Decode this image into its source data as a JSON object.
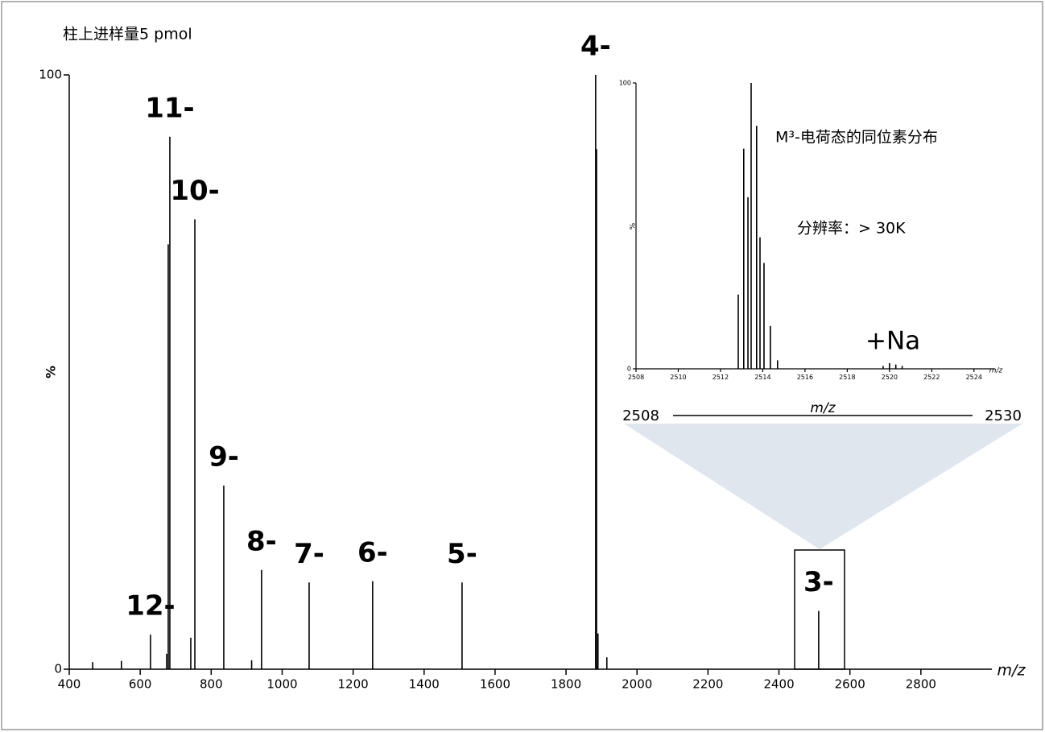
{
  "chart_data": [
    {
      "type": "stem",
      "title": "柱上进样量5 pmol",
      "xlabel": "m/z",
      "ylabel": "%",
      "x": [
        466,
        547,
        629,
        674.5,
        679,
        683.5,
        742.5,
        754,
        835.5,
        914,
        942,
        1076,
        1255,
        1507,
        1883.5,
        1886,
        1890,
        1915,
        2512
      ],
      "values": [
        1.2,
        1.4,
        5.8,
        2.6,
        71.5,
        89.6,
        5.3,
        75.7,
        30.9,
        1.5,
        16.7,
        14.6,
        14.8,
        14.6,
        100,
        87.5,
        6,
        2,
        9.8
      ],
      "labels": [
        null,
        null,
        "12-",
        null,
        null,
        "11-",
        null,
        "10-",
        "9-",
        null,
        "8-",
        "7-",
        "6-",
        "5-",
        "4-",
        null,
        null,
        null,
        "3-"
      ],
      "xlim": [
        400,
        3000
      ],
      "ylim": [
        0,
        100
      ],
      "xticks": [
        400,
        600,
        800,
        1000,
        1200,
        1400,
        1600,
        1800,
        2000,
        2200,
        2400,
        2600,
        2800
      ],
      "yticks": [
        0,
        100
      ],
      "color": "#000000"
    },
    {
      "type": "stem",
      "xlabel": "m/z",
      "ylabel": "%",
      "x": [
        2512.84,
        2513.1,
        2513.3,
        2513.45,
        2513.71,
        2513.87,
        2514.06,
        2514.36,
        2514.7,
        2519.7,
        2520.0,
        2520.3,
        2520.6
      ],
      "values": [
        26,
        77,
        60,
        100,
        85,
        46,
        37,
        15,
        3,
        1,
        2,
        1.5,
        1
      ],
      "xlim": [
        2508,
        2525
      ],
      "ylim": [
        0,
        100
      ],
      "xticks": [
        2508,
        2510,
        2512,
        2514,
        2516,
        2518,
        2520,
        2522,
        2524
      ],
      "yticks": [
        0,
        100
      ],
      "color": "#000000",
      "annotations": [
        "M³-电荷态的同位素分布",
        "分辨率：> 30K",
        "+Na"
      ]
    }
  ],
  "zoom": {
    "range": [
      2508,
      2530
    ],
    "label": "m/z"
  }
}
